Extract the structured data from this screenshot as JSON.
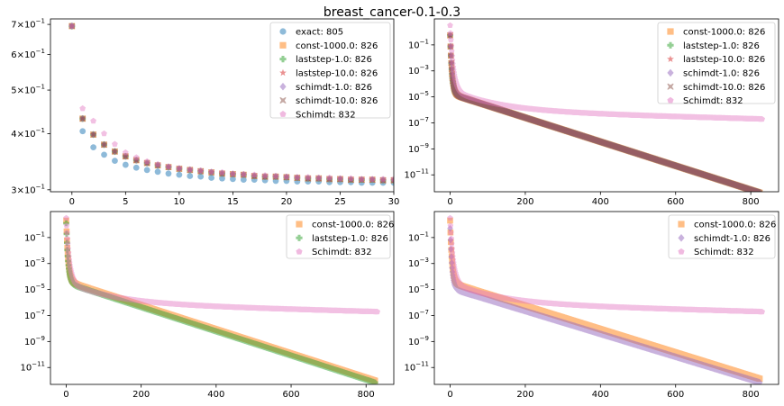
{
  "title": "breast_cancer-0.1-0.3",
  "colors": {
    "exact": "#1f77b4",
    "const-1000.0": "#ff7f0e",
    "laststep-1.0": "#2ca02c",
    "laststep-10.0": "#d62728",
    "schimdt-1.0": "#9467bd",
    "schimdt-10.0": "#8c564b",
    "Schimdt": "#e377c2"
  },
  "chart_data": [
    {
      "type": "scatter",
      "panel": "top-left",
      "xlim": [
        -2,
        30
      ],
      "ylim": [
        0.297,
        0.72
      ],
      "yscale": "log",
      "xticks": [
        0,
        5,
        10,
        15,
        20,
        25,
        30
      ],
      "yticks": [
        {
          "value": 0.3,
          "mant": "3",
          "exp": "−1"
        },
        {
          "value": 0.4,
          "mant": "4",
          "exp": "−1"
        },
        {
          "value": 0.5,
          "mant": "5",
          "exp": "−1"
        },
        {
          "value": 0.6,
          "mant": "6",
          "exp": "−1"
        },
        {
          "value": 0.7,
          "mant": "7",
          "exp": "−1"
        }
      ],
      "legend_position": "top-right",
      "series": [
        {
          "name": "exact: 805",
          "key": "exact",
          "marker": "circle",
          "values": [
            0.694,
            0.405,
            0.373,
            0.359,
            0.348,
            0.341,
            0.336,
            0.332,
            0.329,
            0.326,
            0.324,
            0.322,
            0.321,
            0.319,
            0.318,
            0.317,
            0.316,
            0.316,
            0.315,
            0.314,
            0.314,
            0.313,
            0.313,
            0.313,
            0.312,
            0.312,
            0.312,
            0.311,
            0.311,
            0.311,
            0.311
          ]
        },
        {
          "name": "const-1000.0: 826",
          "key": "const-1000.0",
          "marker": "square",
          "values": [
            0.694,
            0.432,
            0.398,
            0.378,
            0.365,
            0.356,
            0.349,
            0.344,
            0.34,
            0.337,
            0.334,
            0.332,
            0.33,
            0.328,
            0.326,
            0.325,
            0.324,
            0.322,
            0.321,
            0.321,
            0.32,
            0.319,
            0.318,
            0.318,
            0.317,
            0.317,
            0.316,
            0.316,
            0.316,
            0.315,
            0.315
          ]
        },
        {
          "name": "laststep-1.0: 826",
          "key": "laststep-1.0",
          "marker": "plus",
          "values": [
            0.694,
            0.432,
            0.398,
            0.378,
            0.365,
            0.356,
            0.349,
            0.344,
            0.34,
            0.337,
            0.334,
            0.332,
            0.33,
            0.328,
            0.326,
            0.325,
            0.324,
            0.322,
            0.321,
            0.321,
            0.32,
            0.319,
            0.318,
            0.318,
            0.317,
            0.317,
            0.316,
            0.316,
            0.316,
            0.315,
            0.315
          ]
        },
        {
          "name": "laststep-10.0: 826",
          "key": "laststep-10.0",
          "marker": "star",
          "values": [
            0.694,
            0.432,
            0.398,
            0.378,
            0.365,
            0.356,
            0.349,
            0.344,
            0.34,
            0.337,
            0.334,
            0.332,
            0.33,
            0.328,
            0.326,
            0.325,
            0.324,
            0.322,
            0.321,
            0.321,
            0.32,
            0.319,
            0.318,
            0.318,
            0.317,
            0.317,
            0.316,
            0.316,
            0.316,
            0.315,
            0.315
          ]
        },
        {
          "name": "schimdt-1.0: 826",
          "key": "schimdt-1.0",
          "marker": "diamond",
          "values": [
            0.694,
            0.432,
            0.398,
            0.378,
            0.365,
            0.356,
            0.349,
            0.344,
            0.34,
            0.337,
            0.334,
            0.332,
            0.33,
            0.328,
            0.326,
            0.325,
            0.324,
            0.322,
            0.321,
            0.321,
            0.32,
            0.319,
            0.318,
            0.318,
            0.317,
            0.317,
            0.316,
            0.316,
            0.316,
            0.315,
            0.315
          ]
        },
        {
          "name": "schimdt-10.0: 826",
          "key": "schimdt-10.0",
          "marker": "x",
          "values": [
            0.694,
            0.432,
            0.398,
            0.378,
            0.365,
            0.356,
            0.349,
            0.344,
            0.34,
            0.337,
            0.334,
            0.332,
            0.33,
            0.328,
            0.326,
            0.325,
            0.324,
            0.322,
            0.321,
            0.321,
            0.32,
            0.319,
            0.318,
            0.318,
            0.317,
            0.317,
            0.316,
            0.316,
            0.316,
            0.315,
            0.315
          ]
        },
        {
          "name": "Schimdt: 832",
          "key": "Schimdt",
          "marker": "pentagon",
          "values": [
            0.694,
            0.455,
            0.427,
            0.4,
            0.379,
            0.363,
            0.354,
            0.347,
            0.342,
            0.338,
            0.335,
            0.333,
            0.331,
            0.329,
            0.328,
            0.326,
            0.325,
            0.324,
            0.323,
            0.322,
            0.321,
            0.32,
            0.32,
            0.319,
            0.319,
            0.318,
            0.318,
            0.317,
            0.317,
            0.317,
            0.317
          ]
        }
      ]
    },
    {
      "type": "scatter",
      "panel": "top-right",
      "xlim": [
        -42,
        874
      ],
      "ylim": [
        -12.3,
        1.0
      ],
      "yscale": "log",
      "xticks": [
        0,
        200,
        400,
        600,
        800
      ],
      "yticks": [
        {
          "value": -1,
          "mant": "10",
          "exp": "−1"
        },
        {
          "value": -3,
          "mant": "10",
          "exp": "−3"
        },
        {
          "value": -5,
          "mant": "10",
          "exp": "−5"
        },
        {
          "value": -7,
          "mant": "10",
          "exp": "−7"
        },
        {
          "value": -9,
          "mant": "10",
          "exp": "−9"
        },
        {
          "value": -11,
          "mant": "10",
          "exp": "−11"
        }
      ],
      "legend_position": "top-right",
      "series": [
        {
          "name": "const-1000.0: 826",
          "key": "const-1000.0",
          "marker": "square",
          "n": 826,
          "curve": {
            "type": "fast",
            "y0": -0.27,
            "a": -3.8,
            "k": 0.14,
            "b": -4.75,
            "slope": -0.00925
          }
        },
        {
          "name": "laststep-1.0: 826",
          "key": "laststep-1.0",
          "marker": "plus",
          "n": 826,
          "curve": {
            "type": "fast",
            "y0": -0.27,
            "a": -3.8,
            "k": 0.14,
            "b": -4.75,
            "slope": -0.00925
          }
        },
        {
          "name": "laststep-10.0: 826",
          "key": "laststep-10.0",
          "marker": "star",
          "n": 826,
          "curve": {
            "type": "fast",
            "y0": -0.27,
            "a": -3.8,
            "k": 0.14,
            "b": -4.75,
            "slope": -0.00925
          }
        },
        {
          "name": "schimdt-1.0: 826",
          "key": "schimdt-1.0",
          "marker": "diamond",
          "n": 826,
          "curve": {
            "type": "fast",
            "y0": -0.27,
            "a": -3.8,
            "k": 0.14,
            "b": -4.75,
            "slope": -0.00925
          }
        },
        {
          "name": "schimdt-10.0: 826",
          "key": "schimdt-10.0",
          "marker": "x",
          "n": 826,
          "curve": {
            "type": "fast",
            "y0": -0.27,
            "a": -3.8,
            "k": 0.14,
            "b": -4.75,
            "slope": -0.00925
          }
        },
        {
          "name": "Schimdt: 832",
          "key": "Schimdt",
          "marker": "pentagon",
          "n": 832,
          "curve": {
            "type": "slow",
            "y0": 0.5,
            "a": -4.4,
            "k": 0.09,
            "b": -4.4,
            "c": -1.65,
            "m": 0.008,
            "slope": -0.0008
          }
        }
      ]
    },
    {
      "type": "scatter",
      "panel": "bottom-left",
      "xlim": [
        -42,
        874
      ],
      "ylim": [
        -12.3,
        1.0
      ],
      "yscale": "log",
      "xticks": [
        0,
        200,
        400,
        600,
        800
      ],
      "yticks": [
        {
          "value": -1,
          "mant": "10",
          "exp": "−1"
        },
        {
          "value": -3,
          "mant": "10",
          "exp": "−3"
        },
        {
          "value": -5,
          "mant": "10",
          "exp": "−5"
        },
        {
          "value": -7,
          "mant": "10",
          "exp": "−7"
        },
        {
          "value": -9,
          "mant": "10",
          "exp": "−9"
        },
        {
          "value": -11,
          "mant": "10",
          "exp": "−11"
        }
      ],
      "legend_position": "top-right",
      "series": [
        {
          "name": "const-1000.0: 826",
          "key": "const-1000.0",
          "marker": "square",
          "n": 826,
          "curve": {
            "type": "fast",
            "y0": 0.3,
            "a": -4.0,
            "k": 0.13,
            "b": -4.35,
            "slope": -0.0093
          }
        },
        {
          "name": "laststep-1.0: 826",
          "key": "laststep-1.0",
          "marker": "plus",
          "n": 826,
          "curve": {
            "type": "fast",
            "y0": 0.1,
            "a": -4.0,
            "k": 0.13,
            "b": -4.5,
            "slope": -0.0093
          }
        },
        {
          "name": "Schimdt: 832",
          "key": "Schimdt",
          "marker": "pentagon",
          "n": 832,
          "curve": {
            "type": "slow",
            "y0": 0.5,
            "a": -4.4,
            "k": 0.09,
            "b": -4.4,
            "c": -1.65,
            "m": 0.008,
            "slope": -0.0008
          }
        }
      ]
    },
    {
      "type": "scatter",
      "panel": "bottom-right",
      "xlim": [
        -42,
        874
      ],
      "ylim": [
        -12.3,
        1.0
      ],
      "yscale": "log",
      "xticks": [
        0,
        200,
        400,
        600,
        800
      ],
      "yticks": [
        {
          "value": -1,
          "mant": "10",
          "exp": "−1"
        },
        {
          "value": -3,
          "mant": "10",
          "exp": "−3"
        },
        {
          "value": -5,
          "mant": "10",
          "exp": "−5"
        },
        {
          "value": -7,
          "mant": "10",
          "exp": "−7"
        },
        {
          "value": -9,
          "mant": "10",
          "exp": "−9"
        },
        {
          "value": -11,
          "mant": "10",
          "exp": "−11"
        }
      ],
      "legend_position": "top-right",
      "series": [
        {
          "name": "const-1000.0: 826",
          "key": "const-1000.0",
          "marker": "square",
          "n": 826,
          "curve": {
            "type": "fast",
            "y0": 0.3,
            "a": -3.9,
            "k": 0.14,
            "b": -4.45,
            "slope": -0.009
          }
        },
        {
          "name": "schimdt-1.0: 826",
          "key": "schimdt-1.0",
          "marker": "diamond",
          "n": 826,
          "curve": {
            "type": "fast",
            "y0": -0.3,
            "a": -3.9,
            "k": 0.14,
            "b": -4.9,
            "slope": -0.0088
          }
        },
        {
          "name": "Schimdt: 832",
          "key": "Schimdt",
          "marker": "pentagon",
          "n": 832,
          "curve": {
            "type": "slow",
            "y0": 0.5,
            "a": -4.4,
            "k": 0.09,
            "b": -4.4,
            "c": -1.65,
            "m": 0.008,
            "slope": -0.0008
          }
        }
      ]
    }
  ]
}
